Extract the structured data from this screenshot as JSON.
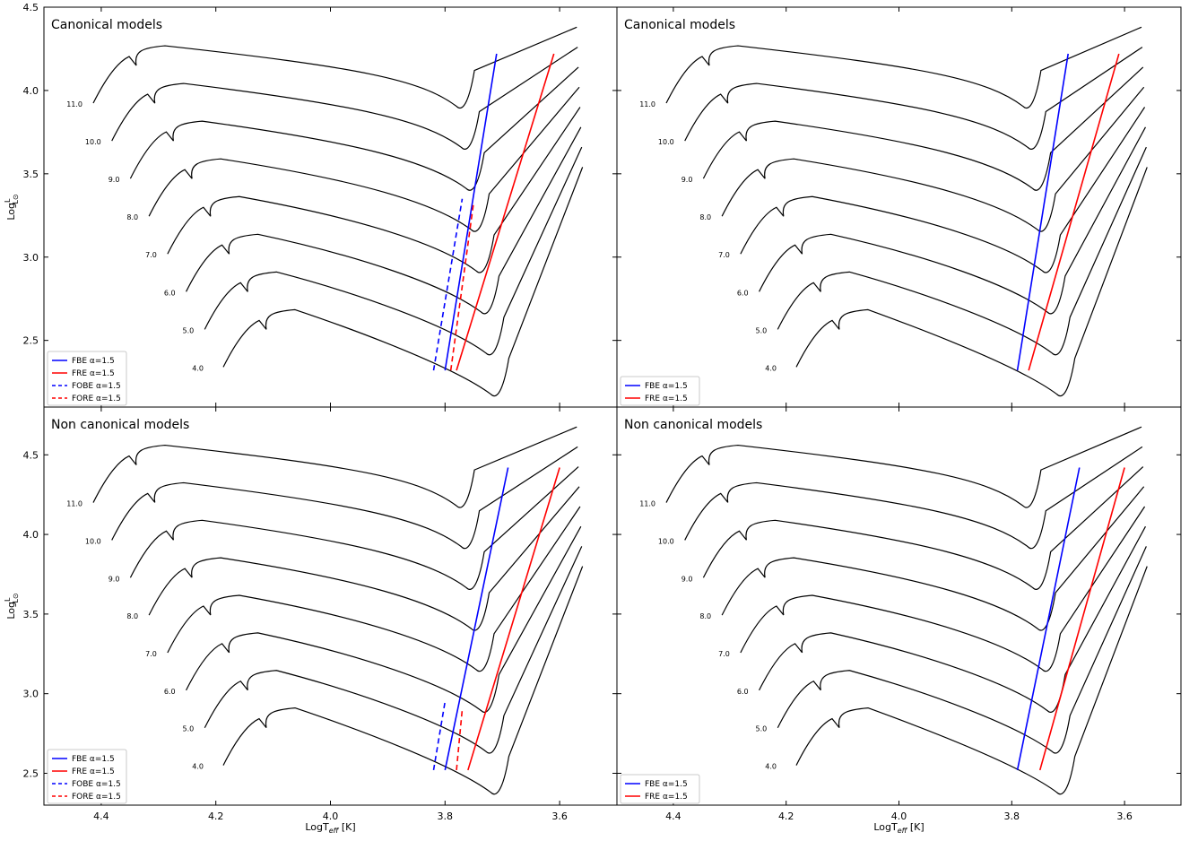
{
  "figure": {
    "ylabel": "Log L/L⊙",
    "xlabel": "LogT_eff [K]",
    "xlabel_main": "LogT",
    "xlabel_sub": "eff",
    "xlabel_unit": " [K]",
    "ylabel_prefix": "Log",
    "ylabel_num": "L",
    "ylabel_den": "L⊙",
    "colors": {
      "FBE": "#0000ff",
      "FRE": "#ff0000",
      "FOBE": "#0000ff",
      "FORE": "#ff0000",
      "tracks": "#000000"
    }
  },
  "chart_data": [
    {
      "type": "line",
      "title": "Canonical models",
      "xlim": [
        4.5,
        3.5
      ],
      "ylim": [
        2.1,
        4.5
      ],
      "xticks": [
        "4.4",
        "4.2",
        "4.0",
        "3.8",
        "3.6"
      ],
      "yticks": [
        "2.5",
        "3.0",
        "3.5",
        "4.0",
        "4.5"
      ],
      "mass_labels": [
        "4.0",
        "5.0",
        "6.0",
        "7.0",
        "8.0",
        "9.0",
        "10.0",
        "11.0"
      ],
      "series": [
        {
          "name": "FBE α=1.5",
          "style": "solid",
          "color": "#0000ff",
          "x": [
            3.8,
            3.71
          ],
          "y": [
            2.32,
            4.22
          ]
        },
        {
          "name": "FRE α=1.5",
          "style": "solid",
          "color": "#ff0000",
          "x": [
            3.78,
            3.61
          ],
          "y": [
            2.32,
            4.22
          ]
        },
        {
          "name": "FOBE α=1.5",
          "style": "dashed",
          "color": "#0000ff",
          "x": [
            3.82,
            3.77
          ],
          "y": [
            2.32,
            3.35
          ]
        },
        {
          "name": "FORE α=1.5",
          "style": "dashed",
          "color": "#ff0000",
          "x": [
            3.79,
            3.75
          ],
          "y": [
            2.32,
            3.33
          ]
        }
      ],
      "legend": [
        "FBE α=1.5",
        "FRE α=1.5",
        "FOBE α=1.5",
        "FORE α=1.5"
      ]
    },
    {
      "type": "line",
      "title": "Canonical models",
      "xlim": [
        4.5,
        3.5
      ],
      "ylim": [
        2.1,
        4.5
      ],
      "xticks": [
        "4.4",
        "4.2",
        "4.0",
        "3.8",
        "3.6"
      ],
      "yticks": [
        "2.5",
        "3.0",
        "3.5",
        "4.0",
        "4.5"
      ],
      "mass_labels": [
        "4.0",
        "5.0",
        "6.0",
        "7.0",
        "8.0",
        "9.0",
        "10.0",
        "11.0"
      ],
      "series": [
        {
          "name": "FBE α=1.5",
          "style": "solid",
          "color": "#0000ff",
          "x": [
            3.79,
            3.7
          ],
          "y": [
            2.32,
            4.22
          ]
        },
        {
          "name": "FRE α=1.5",
          "style": "solid",
          "color": "#ff0000",
          "x": [
            3.77,
            3.61
          ],
          "y": [
            2.32,
            4.22
          ]
        }
      ],
      "legend": [
        "FBE α=1.5",
        "FRE α=1.5"
      ]
    },
    {
      "type": "line",
      "title": "Non canonical models",
      "xlim": [
        4.5,
        3.5
      ],
      "ylim": [
        2.3,
        4.8
      ],
      "xticks": [
        "4.4",
        "4.2",
        "4.0",
        "3.8",
        "3.6"
      ],
      "yticks": [
        "2.5",
        "3.0",
        "3.5",
        "4.0",
        "4.5"
      ],
      "mass_labels": [
        "4.0",
        "5.0",
        "6.0",
        "7.0",
        "8.0",
        "9.0",
        "10.0",
        "11.0"
      ],
      "series": [
        {
          "name": "FBE α=1.5",
          "style": "solid",
          "color": "#0000ff",
          "x": [
            3.8,
            3.69
          ],
          "y": [
            2.52,
            4.42
          ]
        },
        {
          "name": "FRE α=1.5",
          "style": "solid",
          "color": "#ff0000",
          "x": [
            3.76,
            3.6
          ],
          "y": [
            2.52,
            4.42
          ]
        },
        {
          "name": "FOBE α=1.5",
          "style": "dashed",
          "color": "#0000ff",
          "x": [
            3.82,
            3.8
          ],
          "y": [
            2.52,
            2.95
          ]
        },
        {
          "name": "FORE α=1.5",
          "style": "dashed",
          "color": "#ff0000",
          "x": [
            3.78,
            3.77
          ],
          "y": [
            2.52,
            2.9
          ]
        }
      ],
      "legend": [
        "FBE α=1.5",
        "FRE α=1.5",
        "FOBE α=1.5",
        "FORE α=1.5"
      ]
    },
    {
      "type": "line",
      "title": "Non canonical models",
      "xlim": [
        4.5,
        3.5
      ],
      "ylim": [
        2.3,
        4.8
      ],
      "xticks": [
        "4.4",
        "4.2",
        "4.0",
        "3.8",
        "3.6"
      ],
      "yticks": [
        "2.5",
        "3.0",
        "3.5",
        "4.0",
        "4.5"
      ],
      "mass_labels": [
        "4.0",
        "5.0",
        "6.0",
        "7.0",
        "8.0",
        "9.0",
        "10.0",
        "11.0"
      ],
      "series": [
        {
          "name": "FBE α=1.5",
          "style": "solid",
          "color": "#0000ff",
          "x": [
            3.79,
            3.68
          ],
          "y": [
            2.52,
            4.42
          ]
        },
        {
          "name": "FRE α=1.5",
          "style": "solid",
          "color": "#ff0000",
          "x": [
            3.75,
            3.6
          ],
          "y": [
            2.52,
            4.42
          ]
        }
      ],
      "legend": [
        "FBE α=1.5",
        "FRE α=1.5"
      ]
    }
  ]
}
